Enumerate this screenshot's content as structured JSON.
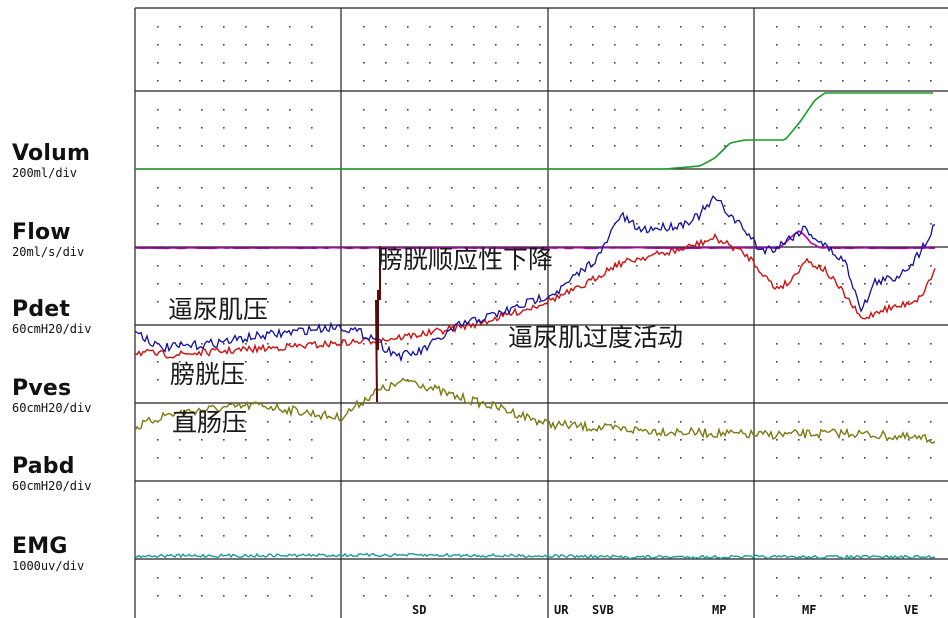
{
  "channels": [
    {
      "id": "volum",
      "name": "Volum",
      "scale": "200ml/div"
    },
    {
      "id": "flow",
      "name": "Flow",
      "scale": "20ml/s/div"
    },
    {
      "id": "pdet",
      "name": "Pdet",
      "scale": "60cmH20/div"
    },
    {
      "id": "pves",
      "name": "Pves",
      "scale": "60cmH20/div"
    },
    {
      "id": "pabd",
      "name": "Pabd",
      "scale": "60cmH20/div"
    },
    {
      "id": "emg",
      "name": "EMG",
      "scale": "1000uv/div"
    }
  ],
  "annotations": {
    "bladder_compliance_decrease": "膀胱顺应性下降",
    "detrusor_pressure": "逼尿肌压",
    "detrusor_overactivity": "逼尿肌过度活动",
    "vesical_pressure": "膀胱压",
    "rectal_pressure": "直肠压"
  },
  "markers": [
    "SD",
    "UR",
    "SVB",
    "MP",
    "MF",
    "VE"
  ],
  "colors": {
    "volume": "#1a9a2a",
    "flow": "#b000b0",
    "pdet": "#cc1111",
    "pves": "#1010a0",
    "pabd": "#7a7a10",
    "emg": "#1a9a9a",
    "grid": "#222222"
  },
  "chart_data": {
    "type": "line",
    "x_markers": [
      "SD",
      "UR",
      "SVB",
      "MP",
      "MF",
      "VE"
    ],
    "series": [
      {
        "name": "Volum"
      },
      {
        "name": "Flow"
      },
      {
        "name": "Pdet"
      },
      {
        "name": "Pves"
      },
      {
        "name": "Pabd"
      },
      {
        "name": "EMG"
      }
    ]
  }
}
